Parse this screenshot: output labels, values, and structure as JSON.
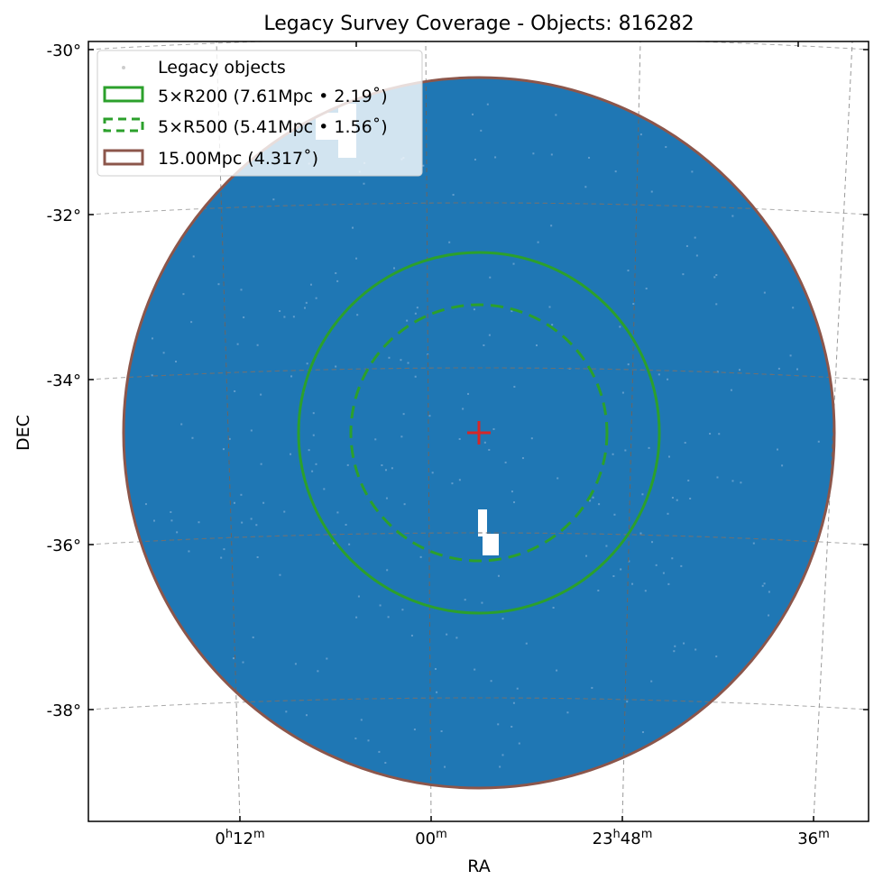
{
  "chart_data": {
    "type": "scatter",
    "title": "Legacy Survey Coverage - Objects: 816282",
    "xlabel": "RA",
    "ylabel": "DEC",
    "object_count": 816282,
    "projection": "sky (WCS)",
    "grid": true,
    "legend_position": "top-left",
    "y_ticks": [
      "-30°",
      "-32°",
      "-34°",
      "-36°",
      "-38°"
    ],
    "x_ticks": [
      {
        "main": "0",
        "h": "h",
        "min": "12",
        "m": "m"
      },
      {
        "main": "",
        "h": "",
        "min": "00",
        "m": "m"
      },
      {
        "main": "23",
        "h": "h",
        "min": "48",
        "m": "m"
      },
      {
        "main": "",
        "h": "",
        "min": "36",
        "m": "m"
      }
    ],
    "center_marker": {
      "color": "#d62728",
      "shape": "plus"
    },
    "series": [
      {
        "name": "Legacy objects",
        "kind": "points",
        "color": "#1f77b4",
        "coverage": "filled disk within 15.00Mpc radius"
      },
      {
        "name": "5×R200 (7.61Mpc • 2.19˚)",
        "kind": "circle",
        "radius_deg": 2.19,
        "radius_mpc": 7.61,
        "color": "#2ca02c",
        "linestyle": "solid"
      },
      {
        "name": "5×R500 (5.41Mpc • 1.56˚)",
        "kind": "circle",
        "radius_deg": 1.56,
        "radius_mpc": 5.41,
        "color": "#2ca02c",
        "linestyle": "dashed"
      },
      {
        "name": "15.00Mpc (4.317˚)",
        "kind": "circle",
        "radius_deg": 4.317,
        "radius_mpc": 15.0,
        "color": "#8c564b",
        "linestyle": "solid"
      }
    ]
  }
}
